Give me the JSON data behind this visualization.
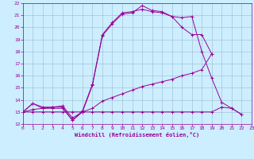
{
  "xlabel": "Windchill (Refroidissement éolien,°C)",
  "bg_color": "#cceeff",
  "grid_color": "#99bbcc",
  "line_color": "#990099",
  "xmin": 0,
  "xmax": 23,
  "ymin": 12,
  "ymax": 22,
  "series": [
    {
      "x": [
        0,
        1,
        2,
        3,
        4,
        5,
        6,
        7,
        8,
        9,
        10,
        11,
        12,
        13,
        14,
        15,
        16,
        17,
        18,
        19
      ],
      "y": [
        13.0,
        13.7,
        13.3,
        13.3,
        13.3,
        12.3,
        13.0,
        15.2,
        19.3,
        20.3,
        21.1,
        21.2,
        21.8,
        21.4,
        21.3,
        20.9,
        20.0,
        19.4,
        19.4,
        17.8
      ]
    },
    {
      "x": [
        0,
        1,
        2,
        3,
        4,
        5,
        6,
        7,
        8,
        9,
        10,
        11,
        12,
        13,
        14,
        15,
        16,
        17,
        18,
        19
      ],
      "y": [
        13.0,
        13.2,
        13.3,
        13.4,
        13.5,
        12.5,
        13.0,
        13.3,
        13.9,
        14.2,
        14.5,
        14.8,
        15.1,
        15.3,
        15.5,
        15.7,
        16.0,
        16.2,
        16.5,
        17.8
      ]
    },
    {
      "x": [
        0,
        1,
        2,
        3,
        4,
        5,
        6,
        7,
        8,
        9,
        10,
        11,
        12,
        13,
        14,
        15,
        16,
        17,
        18,
        19,
        20,
        21,
        22
      ],
      "y": [
        13.0,
        13.0,
        13.0,
        13.0,
        13.0,
        13.0,
        13.0,
        13.0,
        13.0,
        13.0,
        13.0,
        13.0,
        13.0,
        13.0,
        13.0,
        13.0,
        13.0,
        13.0,
        13.0,
        13.0,
        13.4,
        13.3,
        12.8
      ]
    },
    {
      "x": [
        0,
        1,
        2,
        3,
        4,
        5,
        6,
        7,
        8,
        9,
        10,
        11,
        12,
        13,
        14,
        15,
        16,
        17,
        18,
        19,
        20,
        21,
        22
      ],
      "y": [
        13.0,
        13.7,
        13.4,
        13.4,
        13.4,
        12.3,
        13.1,
        15.3,
        19.4,
        20.4,
        21.2,
        21.3,
        21.5,
        21.3,
        21.2,
        20.9,
        20.8,
        20.9,
        18.0,
        15.8,
        13.8,
        13.3,
        12.8
      ]
    }
  ]
}
